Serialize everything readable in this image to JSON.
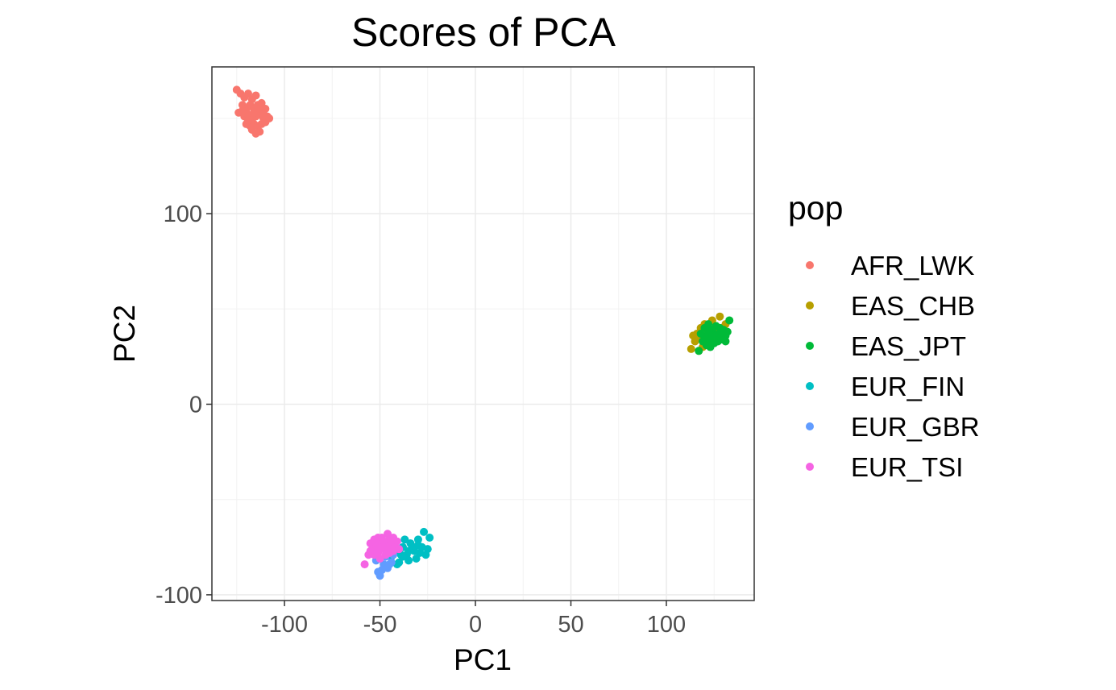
{
  "chart_data": {
    "type": "scatter",
    "title": "Scores of PCA",
    "xlabel": "PC1",
    "ylabel": "PC2",
    "xlim": [
      -138,
      146
    ],
    "ylim": [
      -103,
      177
    ],
    "x_ticks": [
      -100,
      -50,
      0,
      50,
      100
    ],
    "y_ticks": [
      -100,
      0,
      100
    ],
    "x_tick_labels": [
      "-100",
      "-50",
      "0",
      "50",
      "100"
    ],
    "y_tick_labels": [
      "-100",
      "0",
      "100"
    ],
    "grid": true,
    "legend": {
      "title": "pop",
      "position": "right"
    },
    "series": [
      {
        "name": "AFR_LWK",
        "color": "#F8766D",
        "points": [
          [
            -125,
            165
          ],
          [
            -123,
            163
          ],
          [
            -121,
            161
          ],
          [
            -119,
            163
          ],
          [
            -117,
            160
          ],
          [
            -115,
            162
          ],
          [
            -122,
            157
          ],
          [
            -120,
            155
          ],
          [
            -118,
            157
          ],
          [
            -116,
            155
          ],
          [
            -114,
            157
          ],
          [
            -112,
            158
          ],
          [
            -110,
            155
          ],
          [
            -124,
            153
          ],
          [
            -121,
            151
          ],
          [
            -119,
            152
          ],
          [
            -117,
            150
          ],
          [
            -115,
            151
          ],
          [
            -113,
            152
          ],
          [
            -111,
            150
          ],
          [
            -109,
            151
          ],
          [
            -120,
            147
          ],
          [
            -118,
            146
          ],
          [
            -116,
            147
          ],
          [
            -114,
            146
          ],
          [
            -112,
            147
          ],
          [
            -110,
            148
          ],
          [
            -108,
            150
          ],
          [
            -117,
            144
          ],
          [
            -115,
            142
          ],
          [
            -113,
            143
          ],
          [
            -119,
            149
          ],
          [
            -122,
            154
          ],
          [
            -116,
            153
          ],
          [
            -113,
            155
          ],
          [
            -111,
            152
          ]
        ]
      },
      {
        "name": "EAS_CHB",
        "color": "#B79F00",
        "points": [
          [
            113,
            29
          ],
          [
            115,
            33
          ],
          [
            117,
            28
          ],
          [
            114,
            36
          ],
          [
            118,
            40
          ],
          [
            120,
            42
          ],
          [
            122,
            38
          ],
          [
            124,
            44
          ],
          [
            126,
            41
          ],
          [
            128,
            46
          ],
          [
            119,
            30
          ],
          [
            121,
            34
          ],
          [
            123,
            31
          ],
          [
            125,
            35
          ],
          [
            127,
            38
          ],
          [
            129,
            40
          ],
          [
            116,
            37
          ],
          [
            118,
            35
          ],
          [
            131,
            42
          ],
          [
            130,
            36
          ]
        ]
      },
      {
        "name": "EAS_JPT",
        "color": "#00BA38",
        "points": [
          [
            117,
            28
          ],
          [
            119,
            33
          ],
          [
            121,
            36
          ],
          [
            123,
            34
          ],
          [
            125,
            37
          ],
          [
            127,
            35
          ],
          [
            129,
            38
          ],
          [
            131,
            36
          ],
          [
            133,
            44
          ],
          [
            120,
            40
          ],
          [
            122,
            42
          ],
          [
            124,
            39
          ],
          [
            126,
            41
          ],
          [
            128,
            40
          ],
          [
            130,
            39
          ],
          [
            132,
            38
          ],
          [
            118,
            37
          ],
          [
            121,
            31
          ],
          [
            123,
            30
          ],
          [
            125,
            32
          ],
          [
            127,
            33
          ],
          [
            129,
            34
          ],
          [
            131,
            33
          ],
          [
            124,
            36
          ],
          [
            126,
            36
          ],
          [
            128,
            37
          ],
          [
            122,
            38
          ],
          [
            120,
            35
          ]
        ]
      },
      {
        "name": "EUR_FIN",
        "color": "#00BFC4",
        "points": [
          [
            -44,
            -80
          ],
          [
            -42,
            -77
          ],
          [
            -40,
            -83
          ],
          [
            -38,
            -75
          ],
          [
            -36,
            -79
          ],
          [
            -34,
            -73
          ],
          [
            -32,
            -77
          ],
          [
            -30,
            -71
          ],
          [
            -28,
            -75
          ],
          [
            -26,
            -79
          ],
          [
            -24,
            -70
          ],
          [
            -27,
            -67
          ],
          [
            -31,
            -81
          ],
          [
            -35,
            -82
          ],
          [
            -39,
            -79
          ],
          [
            -41,
            -84
          ],
          [
            -37,
            -71
          ],
          [
            -33,
            -75
          ],
          [
            -29,
            -78
          ],
          [
            -25,
            -76
          ],
          [
            -43,
            -74
          ],
          [
            -35,
            -77
          ],
          [
            -30,
            -74
          ],
          [
            -38,
            -80
          ]
        ]
      },
      {
        "name": "EUR_GBR",
        "color": "#619CFF",
        "points": [
          [
            -51,
            -88
          ],
          [
            -50,
            -90
          ],
          [
            -48,
            -84
          ],
          [
            -46,
            -86
          ],
          [
            -44,
            -83
          ],
          [
            -47,
            -80
          ],
          [
            -43,
            -79
          ],
          [
            -52,
            -82
          ],
          [
            -49,
            -87
          ],
          [
            -45,
            -84
          ]
        ]
      },
      {
        "name": "EUR_TSI",
        "color": "#F564E3",
        "points": [
          [
            -58,
            -84
          ],
          [
            -56,
            -79
          ],
          [
            -55,
            -73
          ],
          [
            -54,
            -76
          ],
          [
            -53,
            -71
          ],
          [
            -52,
            -75
          ],
          [
            -51,
            -78
          ],
          [
            -50,
            -73
          ],
          [
            -49,
            -70
          ],
          [
            -48,
            -76
          ],
          [
            -47,
            -73
          ],
          [
            -46,
            -68
          ],
          [
            -45,
            -71
          ],
          [
            -44,
            -75
          ],
          [
            -43,
            -70
          ],
          [
            -42,
            -74
          ],
          [
            -41,
            -72
          ],
          [
            -40,
            -76
          ],
          [
            -53,
            -79
          ],
          [
            -50,
            -81
          ],
          [
            -47,
            -79
          ],
          [
            -45,
            -78
          ],
          [
            -49,
            -75
          ],
          [
            -44,
            -72
          ],
          [
            -51,
            -70
          ],
          [
            -48,
            -72
          ],
          [
            -46,
            -75
          ],
          [
            -43,
            -77
          ],
          [
            -55,
            -77
          ],
          [
            -52,
            -73
          ]
        ]
      }
    ]
  }
}
